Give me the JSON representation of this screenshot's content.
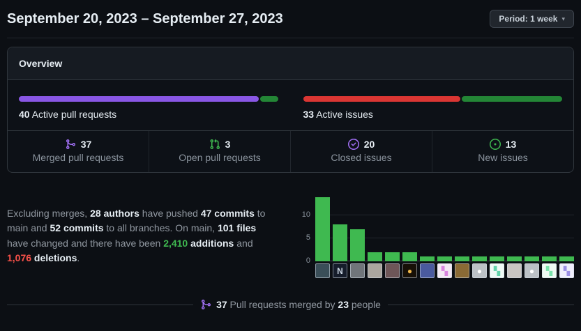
{
  "header": {
    "title": "September 20, 2023 – September 27, 2023",
    "period_button": {
      "label": "Period: 1 week",
      "caret": "▾"
    }
  },
  "overview": {
    "title": "Overview",
    "pull_requests_bar": {
      "value": "40",
      "label": " Active pull requests",
      "merged_width": "92.5%",
      "merged_color": "#8957e5",
      "open_color": "#238636"
    },
    "issues_bar": {
      "value": "33",
      "label": " Active issues",
      "closed_width": "60.6%",
      "closed_color": "#da3633",
      "new_color": "#238636"
    },
    "stats": [
      {
        "icon": "git-merge-icon",
        "icon_color": "#a371f7",
        "value": "37",
        "label": "Merged pull requests"
      },
      {
        "icon": "git-pull-request-icon",
        "icon_color": "#3fb950",
        "value": "3",
        "label": "Open pull requests"
      },
      {
        "icon": "issue-closed-icon",
        "icon_color": "#a371f7",
        "value": "20",
        "label": "Closed issues"
      },
      {
        "icon": "issue-opened-icon",
        "icon_color": "#3fb950",
        "value": "13",
        "label": "New issues"
      }
    ]
  },
  "summary": {
    "parts": [
      {
        "text": "Excluding merges, "
      },
      {
        "text": "28 authors",
        "style": "strong"
      },
      {
        "text": " have pushed "
      },
      {
        "text": "47 commits",
        "style": "strong"
      },
      {
        "text": " to main and "
      },
      {
        "text": "52 commits",
        "style": "strong"
      },
      {
        "text": " to all branches. On main, "
      },
      {
        "text": "101 files",
        "style": "strong"
      },
      {
        "text": " have changed and there have been "
      },
      {
        "text": "2,410",
        "style": "green"
      },
      {
        "text": " additions",
        "style": "strong"
      },
      {
        "text": " and "
      },
      {
        "text": "1,076",
        "style": "red"
      },
      {
        "text": " deletions",
        "style": "strong"
      },
      {
        "text": "."
      }
    ]
  },
  "chart_data": {
    "type": "bar",
    "title": "",
    "xlabel": "",
    "ylabel": "",
    "categories": [
      "author-1",
      "author-2",
      "author-3",
      "author-4",
      "author-5",
      "author-6",
      "author-7",
      "author-8",
      "author-9",
      "author-10",
      "author-11",
      "author-12",
      "author-13",
      "author-14",
      "author-15"
    ],
    "values": [
      14,
      8,
      7,
      2,
      2,
      2,
      1,
      1,
      1,
      1,
      1,
      1,
      1,
      1,
      1
    ],
    "ylim": [
      0,
      15
    ],
    "yticks": [
      0,
      5,
      10
    ],
    "grid": true,
    "legend": false,
    "bar_color": "#3fb950",
    "avatars": [
      {
        "kind": "photo",
        "bg": "#3a4e58",
        "glyph": "",
        "fg": "#d8d3c8"
      },
      {
        "kind": "letter",
        "bg": "#161d2b",
        "glyph": "N",
        "fg": "#cdd9e5"
      },
      {
        "kind": "photo",
        "bg": "#70757a",
        "glyph": "",
        "fg": "#ffffff"
      },
      {
        "kind": "photo",
        "bg": "#aba69f",
        "glyph": "",
        "fg": "#ffffff"
      },
      {
        "kind": "photo",
        "bg": "#6e5658",
        "glyph": "",
        "fg": "#ffffff"
      },
      {
        "kind": "photo",
        "bg": "#171007",
        "glyph": "●",
        "fg": "#f0b74a"
      },
      {
        "kind": "photo",
        "bg": "#4a5a9e",
        "glyph": "",
        "fg": "#ffffff"
      },
      {
        "kind": "identicon",
        "bg": "#f3e9f4",
        "glyph": "▚",
        "fg": "#d884de"
      },
      {
        "kind": "photo",
        "bg": "#8a6a35",
        "glyph": "",
        "fg": "#ffffff"
      },
      {
        "kind": "octocat",
        "bg": "#bcc1c6",
        "glyph": "●",
        "fg": "#ffffff"
      },
      {
        "kind": "identicon",
        "bg": "#f0faf6",
        "glyph": "▚",
        "fg": "#63d3ab"
      },
      {
        "kind": "photo",
        "bg": "#c9c5c2",
        "glyph": "",
        "fg": "#3a3a3a"
      },
      {
        "kind": "octocat",
        "bg": "#bcc1c6",
        "glyph": "●",
        "fg": "#ffffff"
      },
      {
        "kind": "identicon",
        "bg": "#effaf3",
        "glyph": "▚",
        "fg": "#7be3ac"
      },
      {
        "kind": "identicon",
        "bg": "#f0eefc",
        "glyph": "▚",
        "fg": "#9c8fe4"
      }
    ]
  },
  "footer": {
    "icon_color": "#a371f7",
    "parts": [
      {
        "text": "37",
        "style": "strong"
      },
      {
        "text": " Pull requests merged by "
      },
      {
        "text": "23",
        "style": "strong"
      },
      {
        "text": " people"
      }
    ]
  }
}
